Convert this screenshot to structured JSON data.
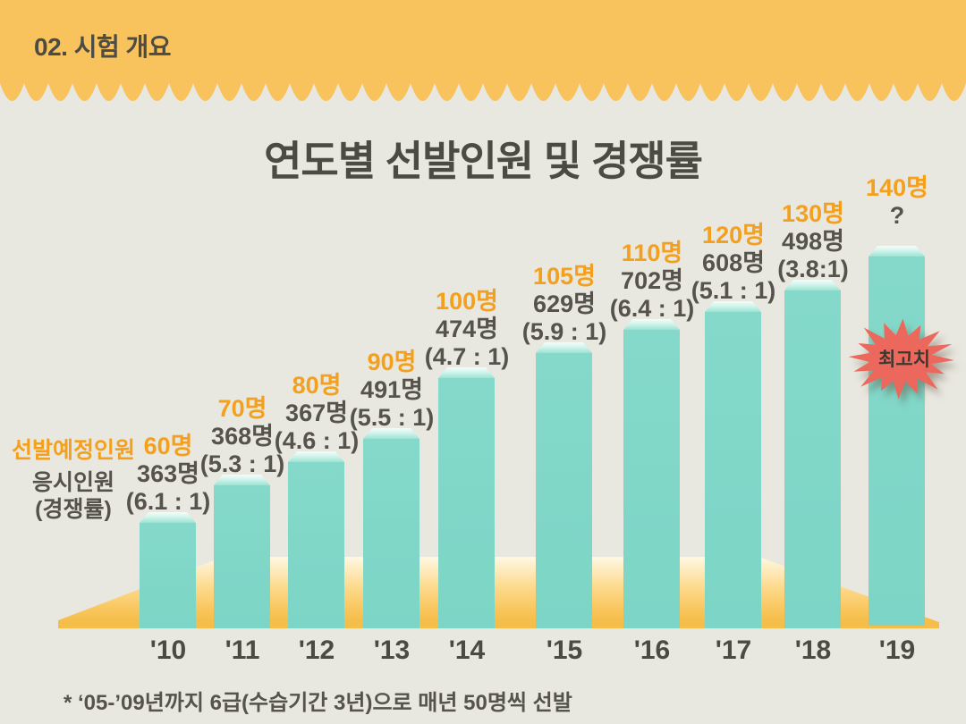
{
  "header": {
    "title": "02. 시험 개요"
  },
  "chart": {
    "title": "연도별 선발인원 및 경쟁률"
  },
  "legend": {
    "planned": "선발예정인원",
    "applicants": "응시인원",
    "ratio": "(경쟁률)"
  },
  "bars": [
    {
      "year": "'10",
      "planned": "60명",
      "applicants": "363명",
      "ratio": "(6.1 : 1)"
    },
    {
      "year": "'11",
      "planned": "70명",
      "applicants": "368명",
      "ratio": "(5.3 : 1)"
    },
    {
      "year": "'12",
      "planned": "80명",
      "applicants": "367명",
      "ratio": "(4.6 : 1)"
    },
    {
      "year": "'13",
      "planned": "90명",
      "applicants": "491명",
      "ratio": "(5.5 : 1)"
    },
    {
      "year": "'14",
      "planned": "100명",
      "applicants": "474명",
      "ratio": "(4.7 : 1)"
    },
    {
      "year": "'15",
      "planned": "105명",
      "applicants": "629명",
      "ratio": "(5.9 : 1)"
    },
    {
      "year": "'16",
      "planned": "110명",
      "applicants": "702명",
      "ratio": "(6.4 : 1)"
    },
    {
      "year": "'17",
      "planned": "120명",
      "applicants": "608명",
      "ratio": "(5.1 : 1)"
    },
    {
      "year": "'18",
      "planned": "130명",
      "applicants": "498명",
      "ratio": "(3.8:1)"
    },
    {
      "year": "'19",
      "planned": "140명",
      "applicants": "?",
      "ratio": null
    }
  ],
  "annotation": {
    "peak_badge": "최고치"
  },
  "footnote": "* ‘05-’09년까지 6급(수습기간 3년)으로 매년 50명씩 선발",
  "colors": {
    "background": "#E9E8E0",
    "header_orange": "#F8C25C",
    "floor_orange": "#F5BD49",
    "bar_teal": "#7CD5C6",
    "accent_orange_text": "#F4A01C",
    "text_dark": "#54524B",
    "burst_red": "#EC685C"
  },
  "chart_data": {
    "type": "bar",
    "title": "연도별 선발인원 및 경쟁률",
    "categories": [
      "'10",
      "'11",
      "'12",
      "'13",
      "'14",
      "'15",
      "'16",
      "'17",
      "'18",
      "'19"
    ],
    "series": [
      {
        "name": "선발예정인원",
        "unit": "명",
        "values": [
          60,
          70,
          80,
          90,
          100,
          105,
          110,
          120,
          130,
          140
        ]
      },
      {
        "name": "응시인원",
        "unit": "명",
        "values": [
          363,
          368,
          367,
          491,
          474,
          629,
          702,
          608,
          498,
          null
        ]
      },
      {
        "name": "경쟁률",
        "values": [
          6.1,
          5.3,
          4.6,
          5.5,
          4.7,
          5.9,
          6.4,
          5.1,
          3.8,
          null
        ]
      }
    ],
    "annotations": [
      {
        "category": "'19",
        "label": "최고치",
        "type": "starburst"
      },
      {
        "category": "'19",
        "applicants_display": "?"
      }
    ],
    "legend_position": "left",
    "grid": false,
    "footnote": "* ‘05-’09년까지 6급(수습기간 3년)으로 매년 50명씩 선발"
  }
}
